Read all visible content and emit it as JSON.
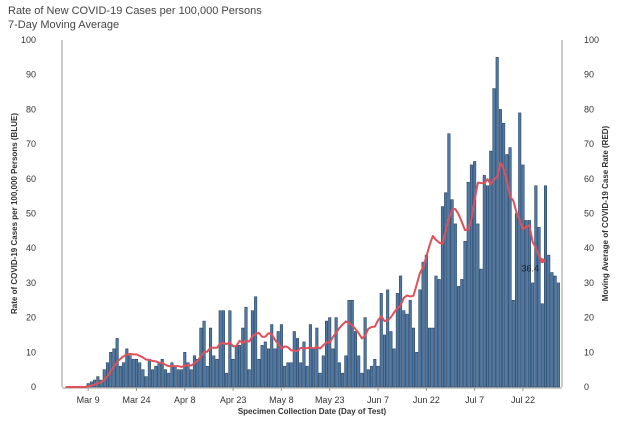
{
  "title": "Rate of New COVID-19 Cases per 100,000 Persons",
  "subtitle": "7-Day Moving Average",
  "colors": {
    "bar_fill": "#4e79a7",
    "bar_stroke": "#1f3650",
    "line": "#e0505a",
    "axis": "#999999"
  },
  "chart_data": {
    "type": "bar",
    "xlabel": "Specimen Collection Date (Day of Test)",
    "ylabel_left": "Rate of COVID-19 Cases per 100,000 Persons (BLUE)",
    "ylabel_right": "Moving Average of COVID-19 Case Rate (RED)",
    "ylim": [
      0,
      100
    ],
    "yticks": [
      0,
      10,
      20,
      30,
      40,
      50,
      60,
      70,
      80,
      90,
      100
    ],
    "x_tick_labels": [
      "Mar 9",
      "Mar 24",
      "Apr 8",
      "Apr 23",
      "May 8",
      "May 23",
      "Jun 7",
      "Jun 22",
      "Jul 7",
      "Jul 22"
    ],
    "start_date": "Mar 2",
    "series": [
      {
        "kind": "bar",
        "values": [
          0,
          0,
          0,
          0,
          0,
          0,
          0,
          1,
          1.5,
          2,
          3,
          2,
          5,
          7,
          10,
          11,
          14,
          6,
          7,
          11,
          9,
          8,
          8,
          7,
          5,
          3,
          8,
          5,
          6,
          7,
          8,
          5,
          4,
          7,
          6,
          5,
          5,
          10,
          7,
          5,
          9,
          8,
          17,
          19,
          6,
          17,
          9,
          8,
          22,
          22,
          4,
          22,
          8,
          12,
          12,
          17,
          23,
          5,
          22,
          26,
          8,
          12,
          13,
          11,
          18,
          11,
          16,
          18,
          6,
          7,
          7,
          16,
          14,
          7,
          13,
          6,
          18,
          11,
          17,
          4,
          9,
          19,
          20,
          11,
          20,
          7,
          4,
          9,
          25,
          25,
          16,
          9,
          4,
          20,
          5,
          6,
          8,
          6,
          27,
          15,
          28,
          16,
          11,
          27,
          32,
          22,
          21,
          25,
          17,
          10,
          28,
          36,
          38,
          17,
          17,
          32,
          31,
          52,
          56,
          73,
          54,
          47,
          29,
          31,
          42,
          59,
          64,
          65,
          47,
          34,
          61,
          58,
          68,
          86,
          95,
          80,
          76,
          67,
          69,
          25,
          50,
          79,
          64,
          48,
          48,
          30,
          58,
          46,
          24,
          58,
          38,
          33,
          32,
          30
        ]
      },
      {
        "kind": "line",
        "values": [
          0,
          0,
          0,
          0,
          0,
          0,
          0,
          0.2,
          0.4,
          0.7,
          1.1,
          1.4,
          2.1,
          3.1,
          4.4,
          5.8,
          7.3,
          8.1,
          8.9,
          9.3,
          9.5,
          9.4,
          9.4,
          9.0,
          8.5,
          7.9,
          7.8,
          7.5,
          7.4,
          7.0,
          6.9,
          6.4,
          6.0,
          6.0,
          6.0,
          6.0,
          5.8,
          6.1,
          6.3,
          6.2,
          6.8,
          7.6,
          8.8,
          10.1,
          10.2,
          11.4,
          11.3,
          11.3,
          12.6,
          12.6,
          12.4,
          12.8,
          11.7,
          11.8,
          13.3,
          12.7,
          13.3,
          13.1,
          14.6,
          15.3,
          15.6,
          14.5,
          14.5,
          15.5,
          15.2,
          13.6,
          12.4,
          11.0,
          11.7,
          11.5,
          10.6,
          10.4,
          10.4,
          11.3,
          11.1,
          11.2,
          11.4,
          11.1,
          11.6,
          11.1,
          12.0,
          12.9,
          12.8,
          14.4,
          15.7,
          17.0,
          18.0,
          18.9,
          18.4,
          17.7,
          16.7,
          15.5,
          14.0,
          14.8,
          16.8,
          17.3,
          17.4,
          19.2,
          20.4,
          19.0,
          19.2,
          20.1,
          21.5,
          22.7,
          23.5,
          25.7,
          26.4,
          26.1,
          26.3,
          29.5,
          32.8,
          34.6,
          37.5,
          40.9,
          43.5,
          42.4,
          41.6,
          41.2,
          44.8,
          48.4,
          51.1,
          51.3,
          49.8,
          47.6,
          45.2,
          45.4,
          48.3,
          53.9,
          58.9,
          58.8,
          58.7,
          59.9,
          58.4,
          59.8,
          60.7,
          64.7,
          62.9,
          59.6,
          54.8,
          53.7,
          50.3,
          48.2,
          45.5,
          46.2,
          46.6,
          41.8,
          40.2,
          37.6,
          36.4
        ],
        "last_label": "36.4"
      }
    ]
  }
}
